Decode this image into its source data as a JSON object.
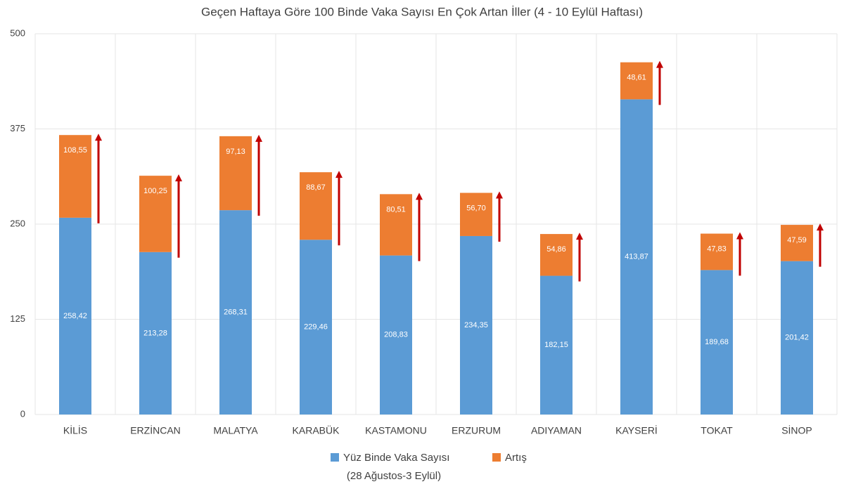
{
  "chart_data": {
    "type": "stacked-bar",
    "title": "Geçen Haftaya Göre 100 Binde Vaka Sayısı En Çok Artan İller (4 - 10 Eylül Haftası)",
    "categories": [
      "KİLİS",
      "ERZİNCAN",
      "MALATYA",
      "KARABÜK",
      "KASTAMONU",
      "ERZURUM",
      "ADIYAMAN",
      "KAYSERİ",
      "TOKAT",
      "SİNOP"
    ],
    "series": [
      {
        "name": "Yüz Binde Vaka Sayısı",
        "color": "#5b9bd5",
        "values": [
          258.42,
          213.28,
          268.31,
          229.46,
          208.83,
          234.35,
          182.15,
          413.87,
          189.68,
          201.42
        ],
        "value_labels": [
          "258,42",
          "213,28",
          "268,31",
          "229,46",
          "208,83",
          "234,35",
          "182,15",
          "413,87",
          "189,68",
          "201,42"
        ]
      },
      {
        "name": "Artış",
        "color": "#ed7d31",
        "values": [
          108.55,
          100.25,
          97.13,
          88.67,
          80.51,
          56.7,
          54.86,
          48.61,
          47.83,
          47.59
        ],
        "value_labels": [
          "108,55",
          "100,25",
          "97,13",
          "88,67",
          "80,51",
          "56,70",
          "54,86",
          "48,61",
          "47,83",
          "47,59"
        ]
      }
    ],
    "legend_note": "(28 Ağustos-3 Eylül)",
    "arrow_color": "#c00000",
    "ylim": [
      0,
      500
    ],
    "yticks": [
      0,
      125,
      250,
      375,
      500
    ],
    "grid": true
  }
}
